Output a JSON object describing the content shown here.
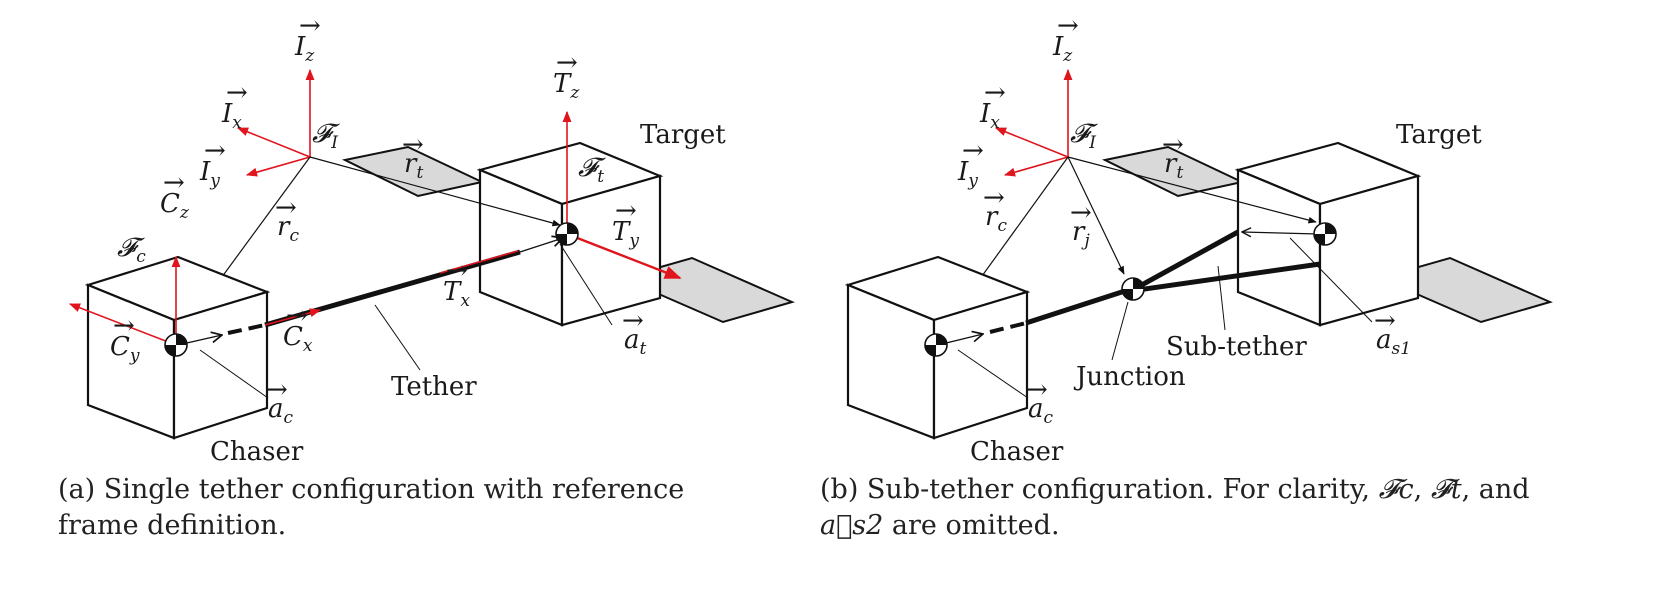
{
  "panel_a": {
    "caption_line1": "(a) Single tether configuration with reference",
    "caption_line2": "frame definition.",
    "labels": {
      "target": "Target",
      "chaser": "Chaser",
      "tether": "Tether"
    }
  },
  "panel_b": {
    "caption_line1_a": "(b) Sub-tether configuration.  For clarity, ",
    "caption_fc": "𝓕c",
    "caption_sep1": ", ",
    "caption_ft": "𝓕t",
    "caption_sep2": ", and",
    "caption_line2_a": "a⃗s2",
    "caption_line2_b": " are omitted.",
    "labels": {
      "target": "Target",
      "chaser": "Chaser",
      "sub_tether": "Sub-tether",
      "junction": "Junction"
    }
  },
  "colors": {
    "axis_red": "#e0141c",
    "ink": "#111111",
    "panel_gray": "#d9d9d9"
  }
}
